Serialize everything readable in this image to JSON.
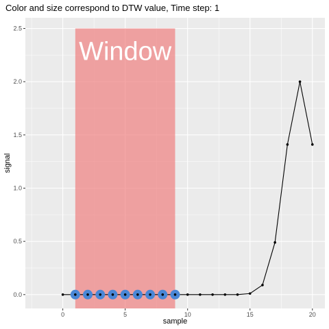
{
  "chart_data": {
    "type": "line",
    "title": "Color and size correspond to DTW value, Time step: 1",
    "xlabel": "sample",
    "ylabel": "signal",
    "xlim": [
      -3,
      21
    ],
    "ylim": [
      -0.13,
      2.6
    ],
    "x_ticks": [
      0,
      5,
      10,
      15,
      20
    ],
    "x_tick_labels": [
      "0",
      "5",
      "10",
      "15",
      "20"
    ],
    "y_ticks": [
      0,
      0.5,
      1,
      1.5,
      2,
      2.5
    ],
    "y_tick_labels": [
      "0.0",
      "0.5",
      "1.0",
      "1.5",
      "2.0",
      "2.5"
    ],
    "grid": true,
    "series": [
      {
        "x": [
          0,
          1,
          2,
          3,
          4,
          5,
          6,
          7,
          8,
          9,
          10,
          11,
          12,
          13,
          14,
          15,
          16,
          17,
          18,
          19,
          20
        ],
        "values": [
          0,
          0,
          0,
          0,
          0,
          0,
          0,
          0,
          0,
          0,
          0,
          0,
          0,
          0,
          0,
          0.01,
          0.09,
          0.49,
          1.41,
          2.0,
          1.41
        ],
        "color": "#000000"
      }
    ],
    "dtw_points": {
      "x": [
        1,
        2,
        3,
        4,
        5,
        6,
        7,
        8,
        9
      ],
      "values": [
        0,
        0,
        0,
        0,
        0,
        0,
        0,
        0,
        0
      ],
      "color": "#4a87d6"
    },
    "window": {
      "label": "Window",
      "x_range": [
        1,
        9
      ],
      "y_range": [
        -0.13,
        2.5
      ],
      "color": "#f08080"
    },
    "colors": {
      "panel": "#ebebeb",
      "grid_major": "#ffffff",
      "tick_text": "#4d4d4d"
    }
  }
}
